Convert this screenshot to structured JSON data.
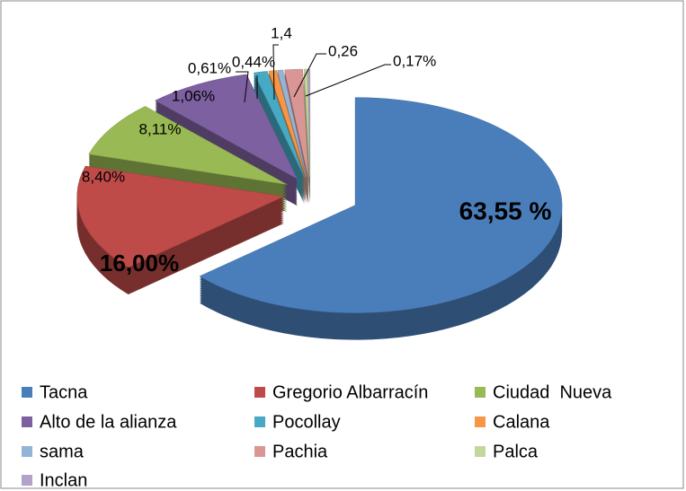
{
  "chart_data": {
    "type": "pie",
    "categories": [
      "Tacna",
      "Gregorio Albarracín",
      "Ciudad  Nueva",
      "Alto de la alianza",
      "Pocollay",
      "Calana",
      "sama",
      "Pachia",
      "Palca",
      "Inclan"
    ],
    "values": [
      63.55,
      16.0,
      8.4,
      8.11,
      1.06,
      0.61,
      0.44,
      1.4,
      0.26,
      0.17
    ],
    "value_labels": [
      "63,55 %",
      "16,00%",
      "8,40%",
      "8,11%",
      "1,06%",
      "0,61%",
      "0,44%",
      "1,4",
      "0,26",
      "0,17%"
    ],
    "colors": [
      "#4a7ebb",
      "#be4b48",
      "#98b954",
      "#7d60a0",
      "#46aac5",
      "#f79646",
      "#95b3d7",
      "#d99694",
      "#c3d69b",
      "#b3a2c7"
    ],
    "legend": "bottom"
  }
}
